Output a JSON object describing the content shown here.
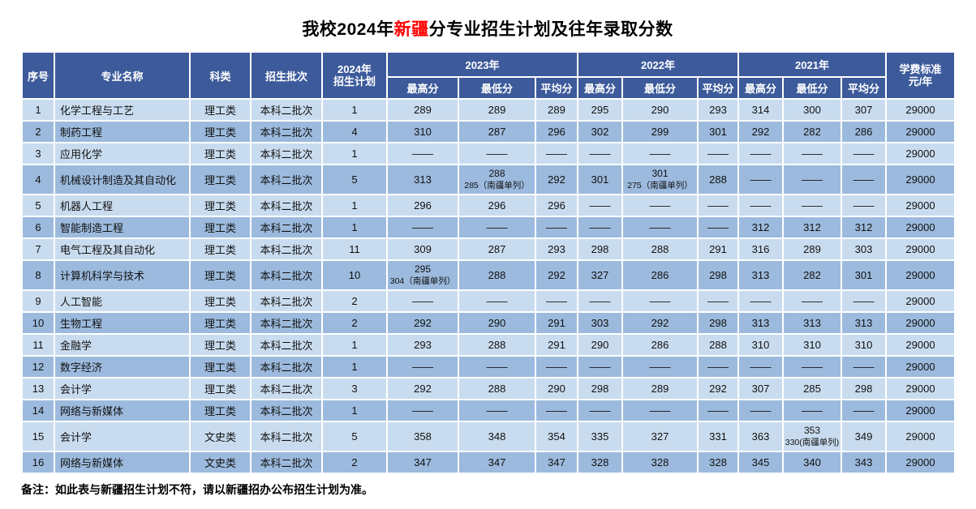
{
  "title": {
    "prefix": "我校2024年",
    "highlight": "新疆",
    "suffix": "分专业招生计划及往年录取分数"
  },
  "colors": {
    "header_bg": "#3d5b9b",
    "row_light": "#c9dcef",
    "row_dark": "#9cbadd",
    "title_highlight": "#ff0000"
  },
  "note": "备注：如此表与新疆招生计划不符，请以新疆招办公布招生计划为准。",
  "table": {
    "headers": {
      "no": "序号",
      "major": "专业名称",
      "category": "科类",
      "batch": "招生批次",
      "plan_line1": "2024年",
      "plan_line2": "招生计划",
      "years": [
        "2023年",
        "2022年",
        "2021年"
      ],
      "score_cols": [
        "最高分",
        "最低分",
        "平均分"
      ],
      "fee_line1": "学费标准",
      "fee_line2": "元/年"
    },
    "rows": [
      {
        "no": "1",
        "major": "化学工程与工艺",
        "category": "理工类",
        "batch": "本科二批次",
        "plan": "1",
        "scores": [
          "289",
          "289",
          "289",
          "295",
          "290",
          "293",
          "314",
          "300",
          "307"
        ],
        "fee": "29000"
      },
      {
        "no": "2",
        "major": "制药工程",
        "category": "理工类",
        "batch": "本科二批次",
        "plan": "4",
        "scores": [
          "310",
          "287",
          "296",
          "302",
          "299",
          "301",
          "292",
          "282",
          "286"
        ],
        "fee": "29000"
      },
      {
        "no": "3",
        "major": "应用化学",
        "category": "理工类",
        "batch": "本科二批次",
        "plan": "1",
        "scores": [
          "——",
          "——",
          "——",
          "——",
          "——",
          "——",
          "——",
          "——",
          "——"
        ],
        "fee": "29000"
      },
      {
        "no": "4",
        "major": "机械设计制造及其自动化",
        "category": "理工类",
        "batch": "本科二批次",
        "plan": "5",
        "scores": [
          "313",
          {
            "main": "288",
            "sub": "285（南疆单列）"
          },
          "292",
          "301",
          {
            "main": "301",
            "sub": "275（南疆单列）"
          },
          "288",
          "——",
          "——",
          "——"
        ],
        "fee": "29000"
      },
      {
        "no": "5",
        "major": "机器人工程",
        "category": "理工类",
        "batch": "本科二批次",
        "plan": "1",
        "scores": [
          "296",
          "296",
          "296",
          "——",
          "——",
          "——",
          "——",
          "——",
          "——"
        ],
        "fee": "29000"
      },
      {
        "no": "6",
        "major": "智能制造工程",
        "category": "理工类",
        "batch": "本科二批次",
        "plan": "1",
        "scores": [
          "——",
          "——",
          "——",
          "——",
          "——",
          "——",
          "312",
          "312",
          "312"
        ],
        "fee": "29000"
      },
      {
        "no": "7",
        "major": "电气工程及其自动化",
        "category": "理工类",
        "batch": "本科二批次",
        "plan": "11",
        "scores": [
          "309",
          "287",
          "293",
          "298",
          "288",
          "291",
          "316",
          "289",
          "303"
        ],
        "fee": "29000"
      },
      {
        "no": "8",
        "major": "计算机科学与技术",
        "category": "理工类",
        "batch": "本科二批次",
        "plan": "10",
        "scores": [
          {
            "main": "295",
            "sub": "304（南疆单列）"
          },
          "288",
          "292",
          "327",
          "286",
          "298",
          "313",
          "282",
          "301"
        ],
        "fee": "29000"
      },
      {
        "no": "9",
        "major": "人工智能",
        "category": "理工类",
        "batch": "本科二批次",
        "plan": "2",
        "scores": [
          "——",
          "——",
          "——",
          "——",
          "——",
          "——",
          "——",
          "——",
          "——"
        ],
        "fee": "29000"
      },
      {
        "no": "10",
        "major": "生物工程",
        "category": "理工类",
        "batch": "本科二批次",
        "plan": "2",
        "scores": [
          "292",
          "290",
          "291",
          "303",
          "292",
          "298",
          "313",
          "313",
          "313"
        ],
        "fee": "29000"
      },
      {
        "no": "11",
        "major": "金融学",
        "category": "理工类",
        "batch": "本科二批次",
        "plan": "1",
        "scores": [
          "293",
          "288",
          "291",
          "290",
          "286",
          "288",
          "310",
          "310",
          "310"
        ],
        "fee": "29000"
      },
      {
        "no": "12",
        "major": "数字经济",
        "category": "理工类",
        "batch": "本科二批次",
        "plan": "1",
        "scores": [
          "——",
          "——",
          "——",
          "——",
          "——",
          "——",
          "——",
          "——",
          "——"
        ],
        "fee": "29000"
      },
      {
        "no": "13",
        "major": "会计学",
        "category": "理工类",
        "batch": "本科二批次",
        "plan": "3",
        "scores": [
          "292",
          "288",
          "290",
          "298",
          "289",
          "292",
          "307",
          "285",
          "298"
        ],
        "fee": "29000"
      },
      {
        "no": "14",
        "major": "网络与新媒体",
        "category": "理工类",
        "batch": "本科二批次",
        "plan": "1",
        "scores": [
          "——",
          "——",
          "——",
          "——",
          "——",
          "——",
          "——",
          "——",
          "——"
        ],
        "fee": "29000"
      },
      {
        "no": "15",
        "major": "会计学",
        "category": "文史类",
        "batch": "本科二批次",
        "plan": "5",
        "scores": [
          "358",
          "348",
          "354",
          "335",
          "327",
          "331",
          "363",
          {
            "main": "353",
            "sub": "330(南疆单列)"
          },
          "349"
        ],
        "fee": "29000"
      },
      {
        "no": "16",
        "major": "网络与新媒体",
        "category": "文史类",
        "batch": "本科二批次",
        "plan": "2",
        "scores": [
          "347",
          "347",
          "347",
          "328",
          "328",
          "328",
          "345",
          "340",
          "343"
        ],
        "fee": "29000"
      }
    ]
  }
}
